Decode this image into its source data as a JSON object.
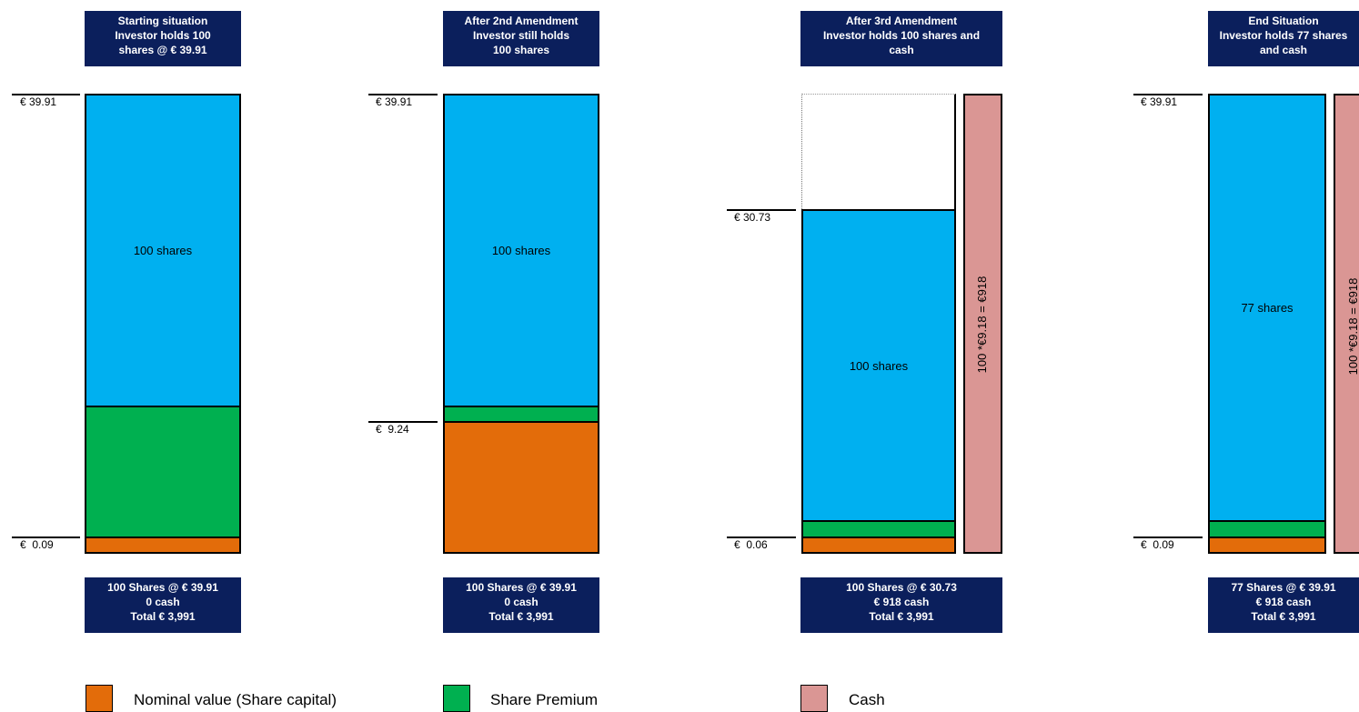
{
  "colors": {
    "nominal": "#e36c0a",
    "premium": "#00b050",
    "shares": "#00b0f0",
    "cash": "#da9694",
    "header_bg": "#0b1f5c"
  },
  "panels": [
    {
      "header": [
        "Starting situation",
        "Investor holds 100",
        "shares @ € 39.91"
      ],
      "footer": [
        "100 Shares @ € 39.91",
        "0 cash",
        "Total € 3,991"
      ],
      "levels": [
        "€ 39.91",
        "€  0.09"
      ],
      "bar_label": "100 shares"
    },
    {
      "header": [
        "After 2nd Amendment",
        "Investor still holds",
        "100 shares"
      ],
      "footer": [
        "100 Shares @ € 39.91",
        "0 cash",
        "Total € 3,991"
      ],
      "levels": [
        "€ 39.91",
        "€  9.24"
      ],
      "bar_label": "100 shares"
    },
    {
      "header": [
        "After 3rd Amendment",
        "Investor holds 100 shares and",
        "cash"
      ],
      "footer": [
        "100 Shares @ € 30.73",
        "€ 918 cash",
        "Total  € 3,991"
      ],
      "levels": [
        "€ 30.73",
        "€  0.06"
      ],
      "bar_label": "100 shares",
      "cash_label": "100 *€9.18 = €918"
    },
    {
      "header": [
        "End Situation",
        "Investor holds 77 shares",
        "and cash"
      ],
      "footer": [
        "77 Shares @ € 39.91",
        "€ 918 cash",
        "Total € 3,991"
      ],
      "levels": [
        "€ 39.91",
        "€  0.09"
      ],
      "bar_label": "77 shares",
      "cash_label": "100 *€9.18 = €918"
    }
  ],
  "legend": [
    {
      "label": "Nominal value (Share capital)",
      "color": "#e36c0a"
    },
    {
      "label": "Share Premium",
      "color": "#00b050"
    },
    {
      "label": "Cash",
      "color": "#da9694"
    }
  ]
}
